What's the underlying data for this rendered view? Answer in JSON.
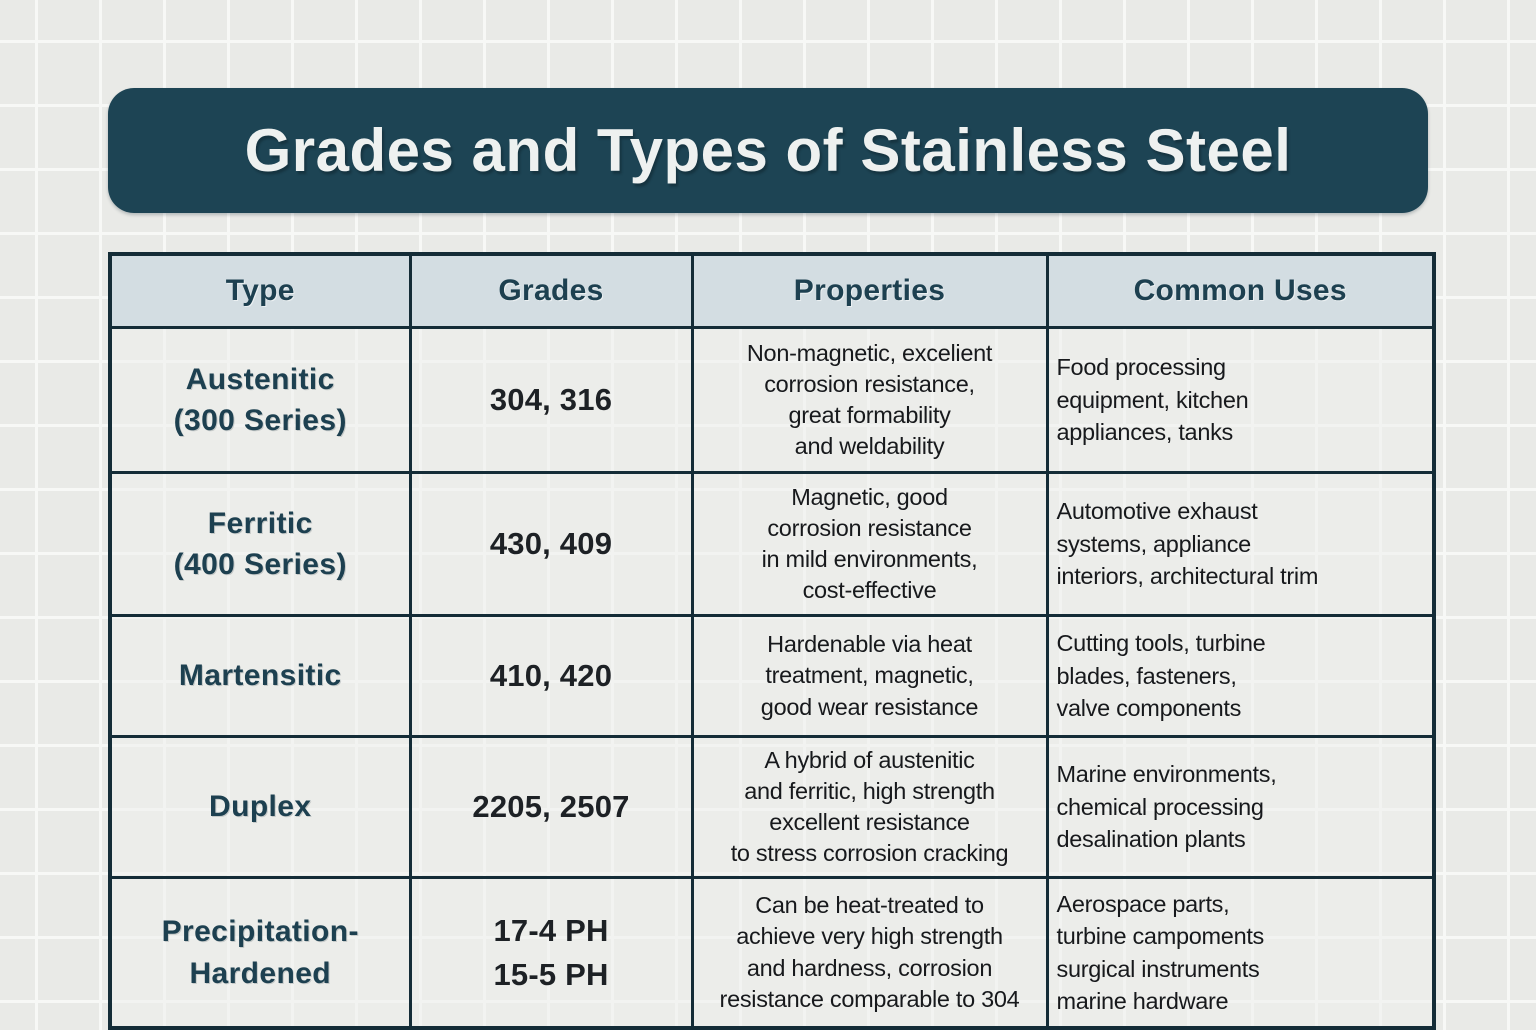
{
  "title": "Grades and Types of Stainless Steel",
  "table": {
    "headers": [
      "Type",
      "Grades",
      "Properties",
      "Common Uses"
    ],
    "rows": [
      {
        "type": "Austenitic\n(300 Series)",
        "grades": "304, 316",
        "properties": "Non-magnetic, excelient\ncorrosion resistance,\ngreat formability\nand weldability",
        "common_uses": "Food processing\nequipment, kitchen\nappliances, tanks"
      },
      {
        "type": "Ferritic\n(400 Series)",
        "grades": "430, 409",
        "properties": "Magnetic, good\ncorrosion resistance\nin mild environments,\ncost-effective",
        "common_uses": "Automotive exhaust\nsystems, appliance\ninteriors, architectural trim"
      },
      {
        "type": "Martensitic",
        "grades": "410, 420",
        "properties": "Hardenable via heat\ntreatment, magnetic,\ngood wear resistance",
        "common_uses": "Cutting tools, turbine\nblades, fasteners,\nvalve components"
      },
      {
        "type": "Duplex",
        "grades": "2205, 2507",
        "properties": "A hybrid of austenitic\nand ferritic, high strength\nexcellent resistance\nto stress corrosion cracking",
        "common_uses": "Marine environments,\nchemical processing\ndesalination plants"
      },
      {
        "type": "Precipitation-\nHardened",
        "grades": "17-4 PH\n15-5 PH",
        "properties": "Can be heat-treated to\nachieve very high strength\nand hardness, corrosion\nresistance comparable to 304",
        "common_uses": "Aerospace parts,\nturbine campoments\nsurgical instruments\nmarine hardware"
      }
    ]
  },
  "colors": {
    "title_bar_bg": "#1d4454",
    "title_text": "#eef1f0",
    "header_row_bg": "#d3dde2",
    "header_text": "#1d4050",
    "table_border": "#142c37",
    "body_text": "#17191c",
    "page_bg": "#e9eae7",
    "grid_line": "#f7f8f6"
  },
  "chart_data": {
    "type": "table",
    "title": "Grades and Types of Stainless Steel",
    "columns": [
      "Type",
      "Grades",
      "Properties",
      "Common Uses"
    ],
    "rows": [
      [
        "Austenitic (300 Series)",
        "304, 316",
        "Non-magnetic, excelient corrosion resistance, great formability and weldability",
        "Food processing equipment, kitchen appliances, tanks"
      ],
      [
        "Ferritic (400 Series)",
        "430, 409",
        "Magnetic, good corrosion resistance in mild environments, cost-effective",
        "Automotive exhaust systems, appliance interiors, architectural trim"
      ],
      [
        "Martensitic",
        "410, 420",
        "Hardenable via heat treatment, magnetic, good wear resistance",
        "Cutting tools, turbine blades, fasteners, valve components"
      ],
      [
        "Duplex",
        "2205, 2507",
        "A hybrid of austenitic and ferritic, high strength excellent resistance to stress corrosion cracking",
        "Marine environments, chemical processing desalination plants"
      ],
      [
        "Precipitation-Hardened",
        "17-4 PH 15-5 PH",
        "Can be heat-treated to achieve very high strength and hardness, corrosion resistance comparable to 304",
        "Aerospace parts, turbine campoments surgical instruments marine hardware"
      ]
    ]
  }
}
